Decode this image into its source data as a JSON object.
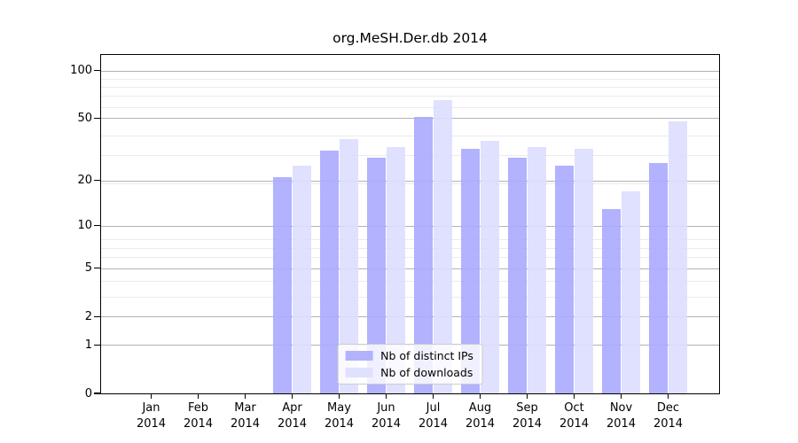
{
  "chart_data": {
    "type": "bar",
    "title": "org.MeSH.Der.db 2014",
    "categories": [
      "Jan",
      "Feb",
      "Mar",
      "Apr",
      "May",
      "Jun",
      "Jul",
      "Aug",
      "Sep",
      "Oct",
      "Nov",
      "Dec"
    ],
    "category_year": "2014",
    "series": [
      {
        "name": "Nb of distinct IPs",
        "color": "#aaaaff",
        "values": [
          0,
          0,
          0,
          21,
          31,
          28,
          51,
          32,
          28,
          25,
          13,
          26
        ]
      },
      {
        "name": "Nb of downloads",
        "color": "#ddddff",
        "values": [
          0,
          0,
          0,
          25,
          37,
          33,
          65,
          36,
          33,
          32,
          17,
          48
        ]
      }
    ],
    "xlabel": "",
    "ylabel": "",
    "yscale": "log1p",
    "ylim": [
      0,
      125
    ],
    "yticks": [
      0,
      1,
      2,
      5,
      10,
      20,
      50,
      100
    ],
    "minor_gridlines": [
      2,
      3,
      4,
      6,
      7,
      8,
      19,
      29,
      39,
      59,
      69,
      79,
      89
    ],
    "grid": true,
    "grid_major_color": "#b3b3b3",
    "grid_minor_color": "#ebebeb",
    "legend_position": "lower center"
  }
}
